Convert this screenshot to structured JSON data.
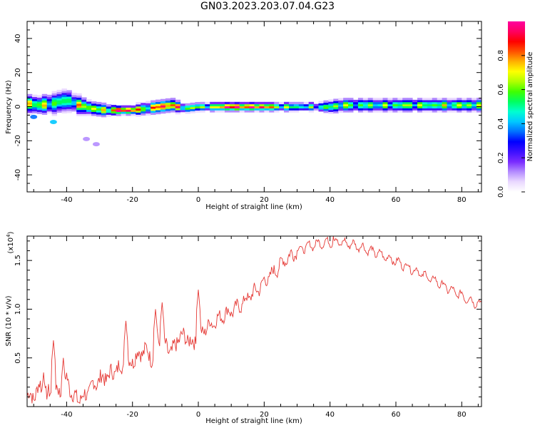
{
  "page": {
    "title": "GN03.2023.203.07.04.G23"
  },
  "colorbar": {
    "label": "Normalized spectral amplitude",
    "ticks": [
      "0.0",
      "0.2",
      "0.4",
      "0.6",
      "0.8"
    ],
    "tick_values": [
      0.0,
      0.2,
      0.4,
      0.6,
      0.8
    ],
    "range": [
      0,
      1
    ],
    "colors": [
      "#ffffff",
      "#ead9ff",
      "#b48cff",
      "#7a2cff",
      "#3d10ff",
      "#0000ff",
      "#0070ff",
      "#00c8ff",
      "#00ffd0",
      "#00ff60",
      "#40ff00",
      "#b0ff00",
      "#ffff00",
      "#ffb000",
      "#ff5000",
      "#ff0000",
      "#ff0060",
      "#ff00a0"
    ]
  },
  "chart_data": [
    {
      "type": "heatmap",
      "xlabel": "Height of straight line (km)",
      "ylabel": "Frequency (Hz)",
      "xlim": [
        -52,
        86
      ],
      "ylim": [
        -50,
        50
      ],
      "xticks": [
        -40,
        -20,
        0,
        20,
        40,
        60,
        80
      ],
      "yticks": [
        -40,
        -20,
        0,
        20,
        40
      ],
      "ridge": {
        "x": [
          -52,
          -48,
          -44,
          -40,
          -36,
          -32,
          -28,
          -24,
          -20,
          -16,
          -12,
          -8,
          -4,
          0,
          4,
          8,
          12,
          16,
          20,
          24,
          28,
          32,
          36,
          40,
          44,
          48,
          52,
          56,
          60,
          64,
          68,
          72,
          76,
          80,
          86
        ],
        "frequency": [
          2,
          1,
          2,
          4,
          1,
          -1,
          -2,
          -2,
          -2,
          -1,
          0,
          1,
          -1,
          0,
          0,
          0,
          0,
          0,
          0,
          0,
          0,
          0,
          0,
          0,
          1,
          1,
          1,
          1,
          1,
          1,
          1,
          1,
          1,
          1,
          1
        ],
        "amplitude": [
          0.75,
          0.6,
          0.55,
          0.5,
          0.65,
          0.7,
          0.6,
          0.95,
          0.9,
          0.55,
          0.9,
          0.85,
          0.6,
          0.6,
          0.55,
          0.95,
          0.95,
          0.85,
          0.9,
          0.6,
          0.55,
          0.5,
          0.45,
          0.55,
          0.6,
          0.5,
          0.55,
          0.5,
          0.55,
          0.6,
          0.55,
          0.6,
          0.55,
          0.6,
          0.6
        ]
      },
      "band_halfwidth": [
        4,
        4,
        5,
        5,
        4,
        3,
        3,
        2,
        2,
        3,
        3,
        3,
        2,
        2,
        2,
        2,
        2,
        2,
        2,
        2,
        2,
        2,
        2,
        3,
        3,
        3,
        3,
        3,
        3,
        3,
        3,
        3,
        3,
        3,
        3
      ],
      "blobs": [
        {
          "x": -50,
          "y": -6,
          "amplitude": 0.35
        },
        {
          "x": -44,
          "y": -9,
          "amplitude": 0.4
        },
        {
          "x": -34,
          "y": -19,
          "amplitude": 0.1
        },
        {
          "x": -31,
          "y": -22,
          "amplitude": 0.1
        }
      ]
    },
    {
      "type": "line",
      "xlabel": "Height of straight line (km)",
      "ylabel": "SNR (10 * v/v)",
      "y_multiplier_label": "(x10",
      "y_multiplier_exp": "4",
      "xlim": [
        -52,
        86
      ],
      "ylim": [
        0,
        1.75
      ],
      "xticks": [
        -40,
        -20,
        0,
        20,
        40,
        60,
        80
      ],
      "yticks": [
        0.5,
        1.0,
        1.5
      ],
      "ytick_labels": [
        "0.5",
        "1.0",
        "1.5"
      ],
      "line_color": "#e53935",
      "x": [
        -52,
        -50,
        -48,
        -46,
        -44,
        -42,
        -40,
        -38,
        -36,
        -34,
        -32,
        -30,
        -28,
        -26,
        -24,
        -22,
        -20,
        -18,
        -16,
        -14,
        -12,
        -10,
        -8,
        -6,
        -4,
        -2,
        0,
        2,
        4,
        6,
        8,
        10,
        12,
        14,
        16,
        18,
        20,
        22,
        24,
        26,
        28,
        30,
        32,
        34,
        36,
        38,
        40,
        42,
        44,
        46,
        48,
        50,
        52,
        54,
        56,
        58,
        60,
        62,
        64,
        66,
        68,
        70,
        72,
        74,
        76,
        78,
        80,
        82,
        84,
        86
      ],
      "y": [
        0.12,
        0.1,
        0.22,
        0.1,
        0.2,
        0.15,
        0.3,
        0.1,
        0.08,
        0.12,
        0.22,
        0.28,
        0.3,
        0.35,
        0.4,
        0.42,
        0.48,
        0.55,
        0.58,
        0.5,
        0.68,
        0.62,
        0.55,
        0.7,
        0.72,
        0.65,
        0.7,
        0.8,
        0.85,
        0.9,
        0.95,
        0.98,
        1.02,
        1.08,
        1.15,
        1.2,
        1.28,
        1.35,
        1.42,
        1.5,
        1.55,
        1.6,
        1.63,
        1.65,
        1.67,
        1.68,
        1.69,
        1.69,
        1.68,
        1.67,
        1.65,
        1.63,
        1.6,
        1.58,
        1.55,
        1.52,
        1.49,
        1.46,
        1.43,
        1.39,
        1.36,
        1.32,
        1.29,
        1.25,
        1.21,
        1.17,
        1.14,
        1.1,
        1.07,
        1.05
      ],
      "spikes": [
        {
          "x": -47,
          "y": 0.35
        },
        {
          "x": -44,
          "y": 0.68
        },
        {
          "x": -41,
          "y": 0.5
        },
        {
          "x": -22,
          "y": 0.88
        },
        {
          "x": -13,
          "y": 1.0
        },
        {
          "x": -11,
          "y": 1.07
        },
        {
          "x": 0,
          "y": 1.2
        },
        {
          "x": 41,
          "y": 1.75
        }
      ]
    }
  ]
}
